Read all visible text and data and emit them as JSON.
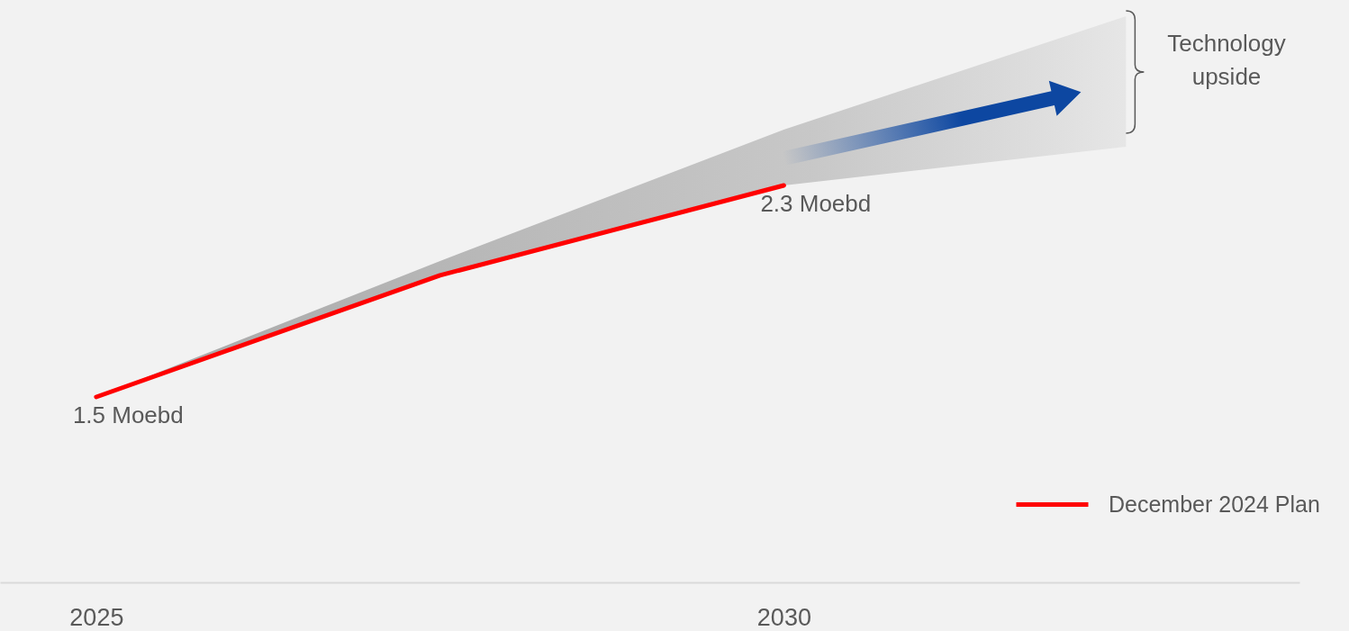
{
  "chart_data": {
    "type": "line",
    "annotations": [
      "Technology upside"
    ],
    "xlim": [
      2024.3,
      2033.75
    ],
    "xticks": [
      2025,
      2030
    ],
    "tick_labels": "x",
    "grid": false,
    "legend": "bottom right",
    "marker": "none",
    "line_style": "solid",
    "series": [
      {
        "name": "December 2024 Plan",
        "color": "#ff0000",
        "x": [
          2025,
          2027.5,
          2030
        ],
        "values": [
          1.5,
          1.96,
          2.3
        ],
        "value_labels": [
          "1.5 Moebd",
          null,
          "2.3 Moebd"
        ]
      }
    ]
  }
}
